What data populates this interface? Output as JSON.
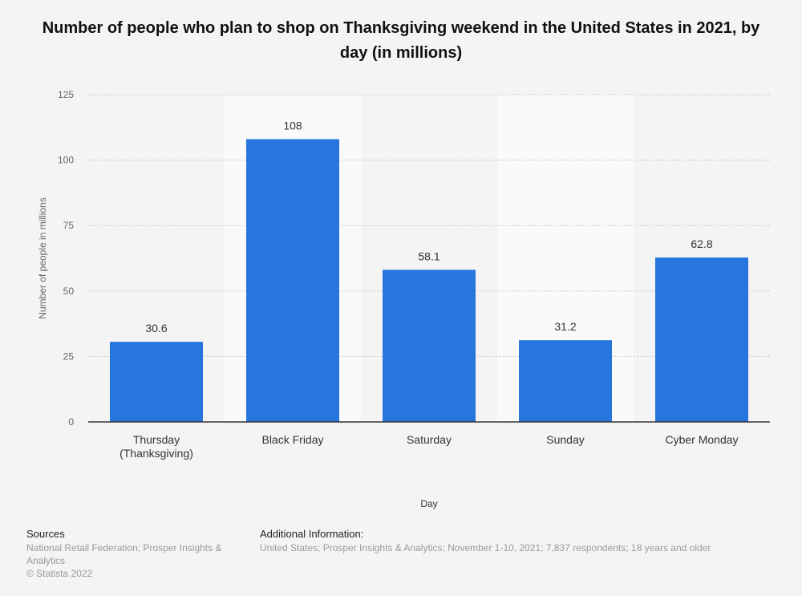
{
  "chart_data": {
    "type": "bar",
    "title": "Number of people who plan to shop on Thanksgiving weekend in the United States in 2021, by day (in millions)",
    "categories": [
      "Thursday (Thanksgiving)",
      "Black Friday",
      "Saturday",
      "Sunday",
      "Cyber Monday"
    ],
    "category_lines": [
      [
        "Thursday",
        "(Thanksgiving)"
      ],
      [
        "Black Friday"
      ],
      [
        "Saturday"
      ],
      [
        "Sunday"
      ],
      [
        "Cyber Monday"
      ]
    ],
    "values": [
      30.6,
      108,
      58.1,
      31.2,
      62.8
    ],
    "data_labels": [
      "30.6",
      "108",
      "58.1",
      "31.2",
      "62.8"
    ],
    "xlabel": "Day",
    "ylabel": "Number of people in millions",
    "ylim": [
      0,
      125
    ],
    "yticks": [
      0,
      25,
      50,
      75,
      100,
      125
    ],
    "grid": true,
    "bar_color": "#2876dd"
  },
  "footer": {
    "sources_heading": "Sources",
    "sources_line1": "National Retail Federation; Prosper Insights &",
    "sources_line2": "Analytics",
    "copyright": "© Statista 2022",
    "additional_heading": "Additional Information:",
    "additional_text": "United States; Prosper Insights & Analytics; November 1-10, 2021; 7,837 respondents; 18 years and older"
  }
}
